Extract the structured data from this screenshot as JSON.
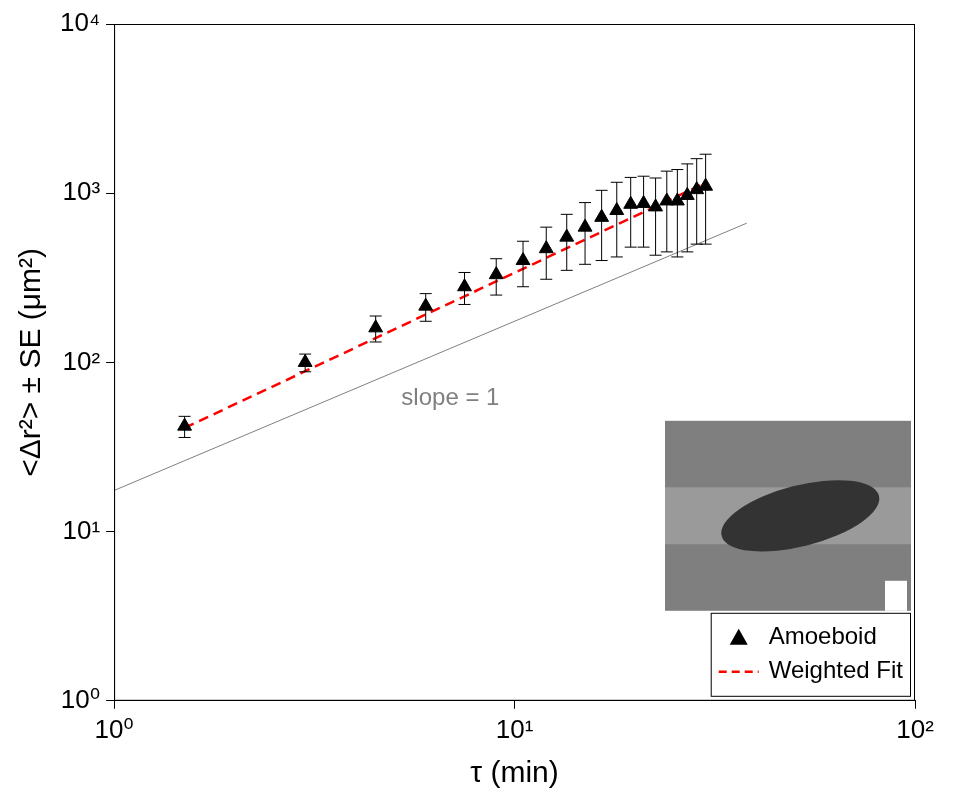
{
  "chart_data": {
    "type": "scatter",
    "x_label": "τ (min)",
    "y_label": "<Δr²> ± SE (μm²)",
    "log": true,
    "grid": false,
    "legend": "lower right",
    "xlim": [
      1,
      100
    ],
    "xticks": [
      {
        "value": 1,
        "label": "10⁰"
      },
      {
        "value": 10,
        "label": "10¹"
      },
      {
        "value": 100,
        "label": "10²"
      }
    ],
    "ylim": [
      1,
      10000
    ],
    "yticks": [
      {
        "value": 1,
        "label": "10⁰"
      },
      {
        "value": 10,
        "label": "10¹"
      },
      {
        "value": 100,
        "label": "10²"
      },
      {
        "value": 1000,
        "label": "10³"
      },
      {
        "value": 10000,
        "label": "10⁴"
      }
    ],
    "series": [
      {
        "name": "Amoeboid",
        "type": "scatter",
        "marker": "triangle",
        "color": "#000000",
        "x": [
          1.5,
          3,
          4.5,
          6,
          7.5,
          9,
          10.5,
          12,
          13.5,
          15,
          16.5,
          18,
          19.5,
          21,
          22.5,
          24,
          25.5,
          27,
          28.5,
          30
        ],
        "values": [
          42,
          100,
          160,
          215,
          280,
          330,
          400,
          470,
          550,
          630,
          720,
          790,
          860,
          870,
          830,
          900,
          900,
          970,
          1050,
          1100
        ],
        "errors": [
          6,
          12,
          28,
          40,
          60,
          80,
          120,
          160,
          200,
          250,
          320,
          370,
          380,
          390,
          400,
          450,
          480,
          520,
          550,
          600
        ]
      },
      {
        "name": "Weighted Fit",
        "type": "line",
        "line_style": "dashed",
        "color": "#ff0000",
        "x": [
          1.5,
          30
        ],
        "values": [
          41,
          1150
        ]
      }
    ],
    "annotations": [
      {
        "text": "slope = 1",
        "color": "#808080",
        "line": {
          "x": [
            1,
            38
          ],
          "values": [
            17.5,
            665
          ]
        }
      }
    ]
  }
}
